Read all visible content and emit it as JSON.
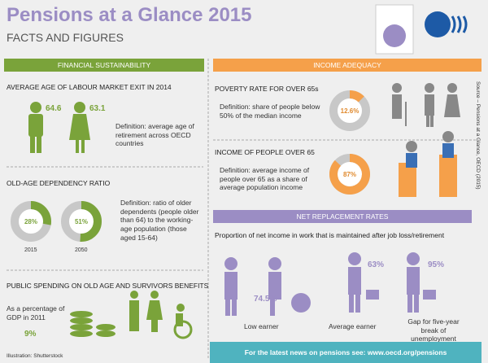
{
  "header": {
    "title": "Pensions at a Glance 2015",
    "subtitle": "FACTS AND FIGURES"
  },
  "financial": {
    "heading": "FINANCIAL SUSTAINABILITY",
    "exit_age": {
      "title": "AVERAGE AGE OF LABOUR MARKET EXIT IN 2014",
      "men": "64.6",
      "women": "63.1",
      "definition": "Definition: average age of retirement across OECD countries"
    },
    "dependency": {
      "title": "OLD-AGE DEPENDENCY RATIO",
      "rings": [
        {
          "value": 28,
          "label": "28%",
          "year": "2015"
        },
        {
          "value": 51,
          "label": "51%",
          "year": "2050"
        }
      ],
      "definition": "Definition: ratio of older dependents (people older than 64) to the working-age population (those aged 15-64)"
    },
    "spending": {
      "title": "PUBLIC SPENDING ON OLD AGE AND SURVIVORS BENEFITS",
      "description": "As a percentage of GDP in 2011",
      "value": "9%"
    }
  },
  "credit": "Illustration: Shutterstock",
  "adequacy": {
    "heading": "INCOME ADEQUACY",
    "poverty": {
      "title": "POVERTY RATE FOR OVER 65s",
      "definition": "Definition: share of people below 50% of the median income",
      "ring": {
        "value": 12.6,
        "label": "12.6%"
      }
    },
    "income": {
      "title": "INCOME OF PEOPLE OVER 65",
      "definition": "Definition: average income of people over 65 as a share of average population income",
      "ring": {
        "value": 87,
        "label": "87%"
      }
    }
  },
  "replacement": {
    "heading": "NET REPLACEMENT RATES",
    "intro": "Proportion of net income in work that is maintained after job loss/retirement",
    "items": [
      {
        "value": "74.5%",
        "label": "Low earner"
      },
      {
        "value": "63%",
        "label": "Average earner"
      },
      {
        "value": "95%",
        "label": "Gap for five-year break of unemployment"
      }
    ]
  },
  "footer": "For the latest news on pensions see: www.oecd.org/pensions",
  "source": "Source – Pensions at a Glance, OECD (2015)"
}
